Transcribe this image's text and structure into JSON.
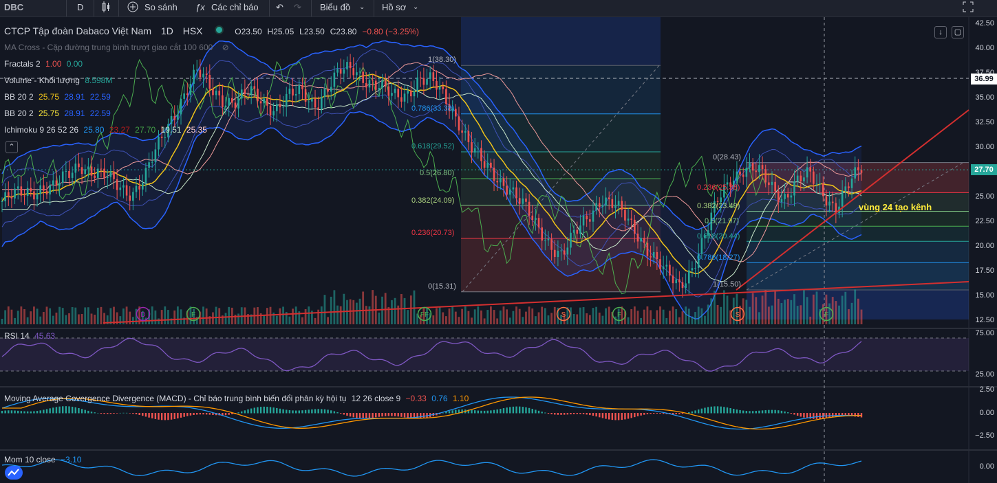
{
  "toolbar": {
    "symbol": "DBC",
    "interval": "D",
    "compare_label": "So sánh",
    "indicators_label": "Các chỉ báo",
    "layout_label": "Biểu đồ",
    "profile_label": "Hồ sơ"
  },
  "legend": {
    "title": "CTCP Tập đoàn Dabaco Việt Nam",
    "interval": "1D",
    "exchange": "HSX",
    "ohlc": {
      "o": "O23.50",
      "h": "H25.05",
      "l": "L23.50",
      "c": "C23.80",
      "chg": "−0.80 (−3.25%)"
    },
    "ma_cross": "MA Cross - Cặp đường trung bình trượt giao cắt 100 600",
    "fractals": {
      "name": "Fractals 2",
      "v1": "1.00",
      "v2": "0.00"
    },
    "volume": {
      "name": "Volume - Khối lượng",
      "value": "8.598M"
    },
    "bb1": {
      "name": "BB 20 2",
      "v1": "25.75",
      "v2": "28.91",
      "v3": "22.59"
    },
    "bb2": {
      "name": "BB 20 2",
      "v1": "25.75",
      "v2": "28.91",
      "v3": "22.59"
    },
    "ichimoku": {
      "name": "Ichimoku 9 26 52 26",
      "v1": "25.80",
      "v2": "23.27",
      "v3": "27.70",
      "v4": "19.51",
      "v5": "25.35"
    },
    "rsi": {
      "name": "RSI 14",
      "value": "45.63"
    },
    "macd": {
      "name": "Moving Average Covergence Divergence (MACD) - Chỉ báo trung bình biến đổi phân kỳ hội tụ",
      "params": "12 26 close 9",
      "v1": "−0.33",
      "v2": "0.76",
      "v3": "1.10"
    },
    "mom": {
      "name": "Mom 10 close",
      "value": "−3.10"
    }
  },
  "annotation": "vùng 24 tạo kênh",
  "badges": {
    "level1": "36.99",
    "last": "27.70"
  },
  "fib_left": [
    "1(38.30)",
    "0.786(33.38)",
    "0.618(29.52)",
    "0.5(26.80)",
    "0.382(24.09)",
    "0.236(20.73)",
    "0(15.31)"
  ],
  "fib_right": [
    "0(28.43)",
    "0.236(25.38)",
    "0.382(23.49)",
    "0.5(21.97)",
    "0.618(20.44)",
    "0.786(18.27)",
    "1(15.50)"
  ],
  "markers": [
    "D",
    "F",
    "FF",
    "S",
    "F",
    "S",
    "F"
  ],
  "colors": {
    "bg": "#131722",
    "up": "#26a69a",
    "down": "#ef5350",
    "bb": "#2962ff",
    "ma": "#f0c419",
    "trend": "#d32f2f",
    "rsi": "#7e57c2"
  },
  "chart_data": {
    "type": "candlestick",
    "price_axis_ticks": [
      "42.50",
      "40.00",
      "37.50",
      "35.00",
      "32.50",
      "30.00",
      "27.50",
      "25.00",
      "22.50",
      "20.00",
      "17.50",
      "15.00",
      "12.50"
    ],
    "rsi_axis_ticks": [
      "75.00",
      "25.00"
    ],
    "macd_axis_ticks": [
      "2.50",
      "0.00",
      "−2.50"
    ],
    "mom_axis_ticks": [
      "0.00"
    ],
    "close_path": [
      24.5,
      25.0,
      25.5,
      26.0,
      25.8,
      27.0,
      28.5,
      27.5,
      26.8,
      26.0,
      25.5,
      27.0,
      30.0,
      33.0,
      35.5,
      37.5,
      36.0,
      35.0,
      34.5,
      35.5,
      34.8,
      34.0,
      35.0,
      35.5,
      34.5,
      36.0,
      37.5,
      38.0,
      37.0,
      36.0,
      35.0,
      35.5,
      37.0,
      36.5,
      35.0,
      33.0,
      30.0,
      28.0,
      27.0,
      26.0,
      24.0,
      22.0,
      20.5,
      19.0,
      21.0,
      23.0,
      25.0,
      24.0,
      22.5,
      21.0,
      19.0,
      17.0,
      15.8,
      18.0,
      21.0,
      24.5,
      27.0,
      28.0,
      27.5,
      26.0,
      25.0,
      26.5,
      27.0,
      25.5,
      24.0,
      26.0,
      27.7
    ]
  }
}
